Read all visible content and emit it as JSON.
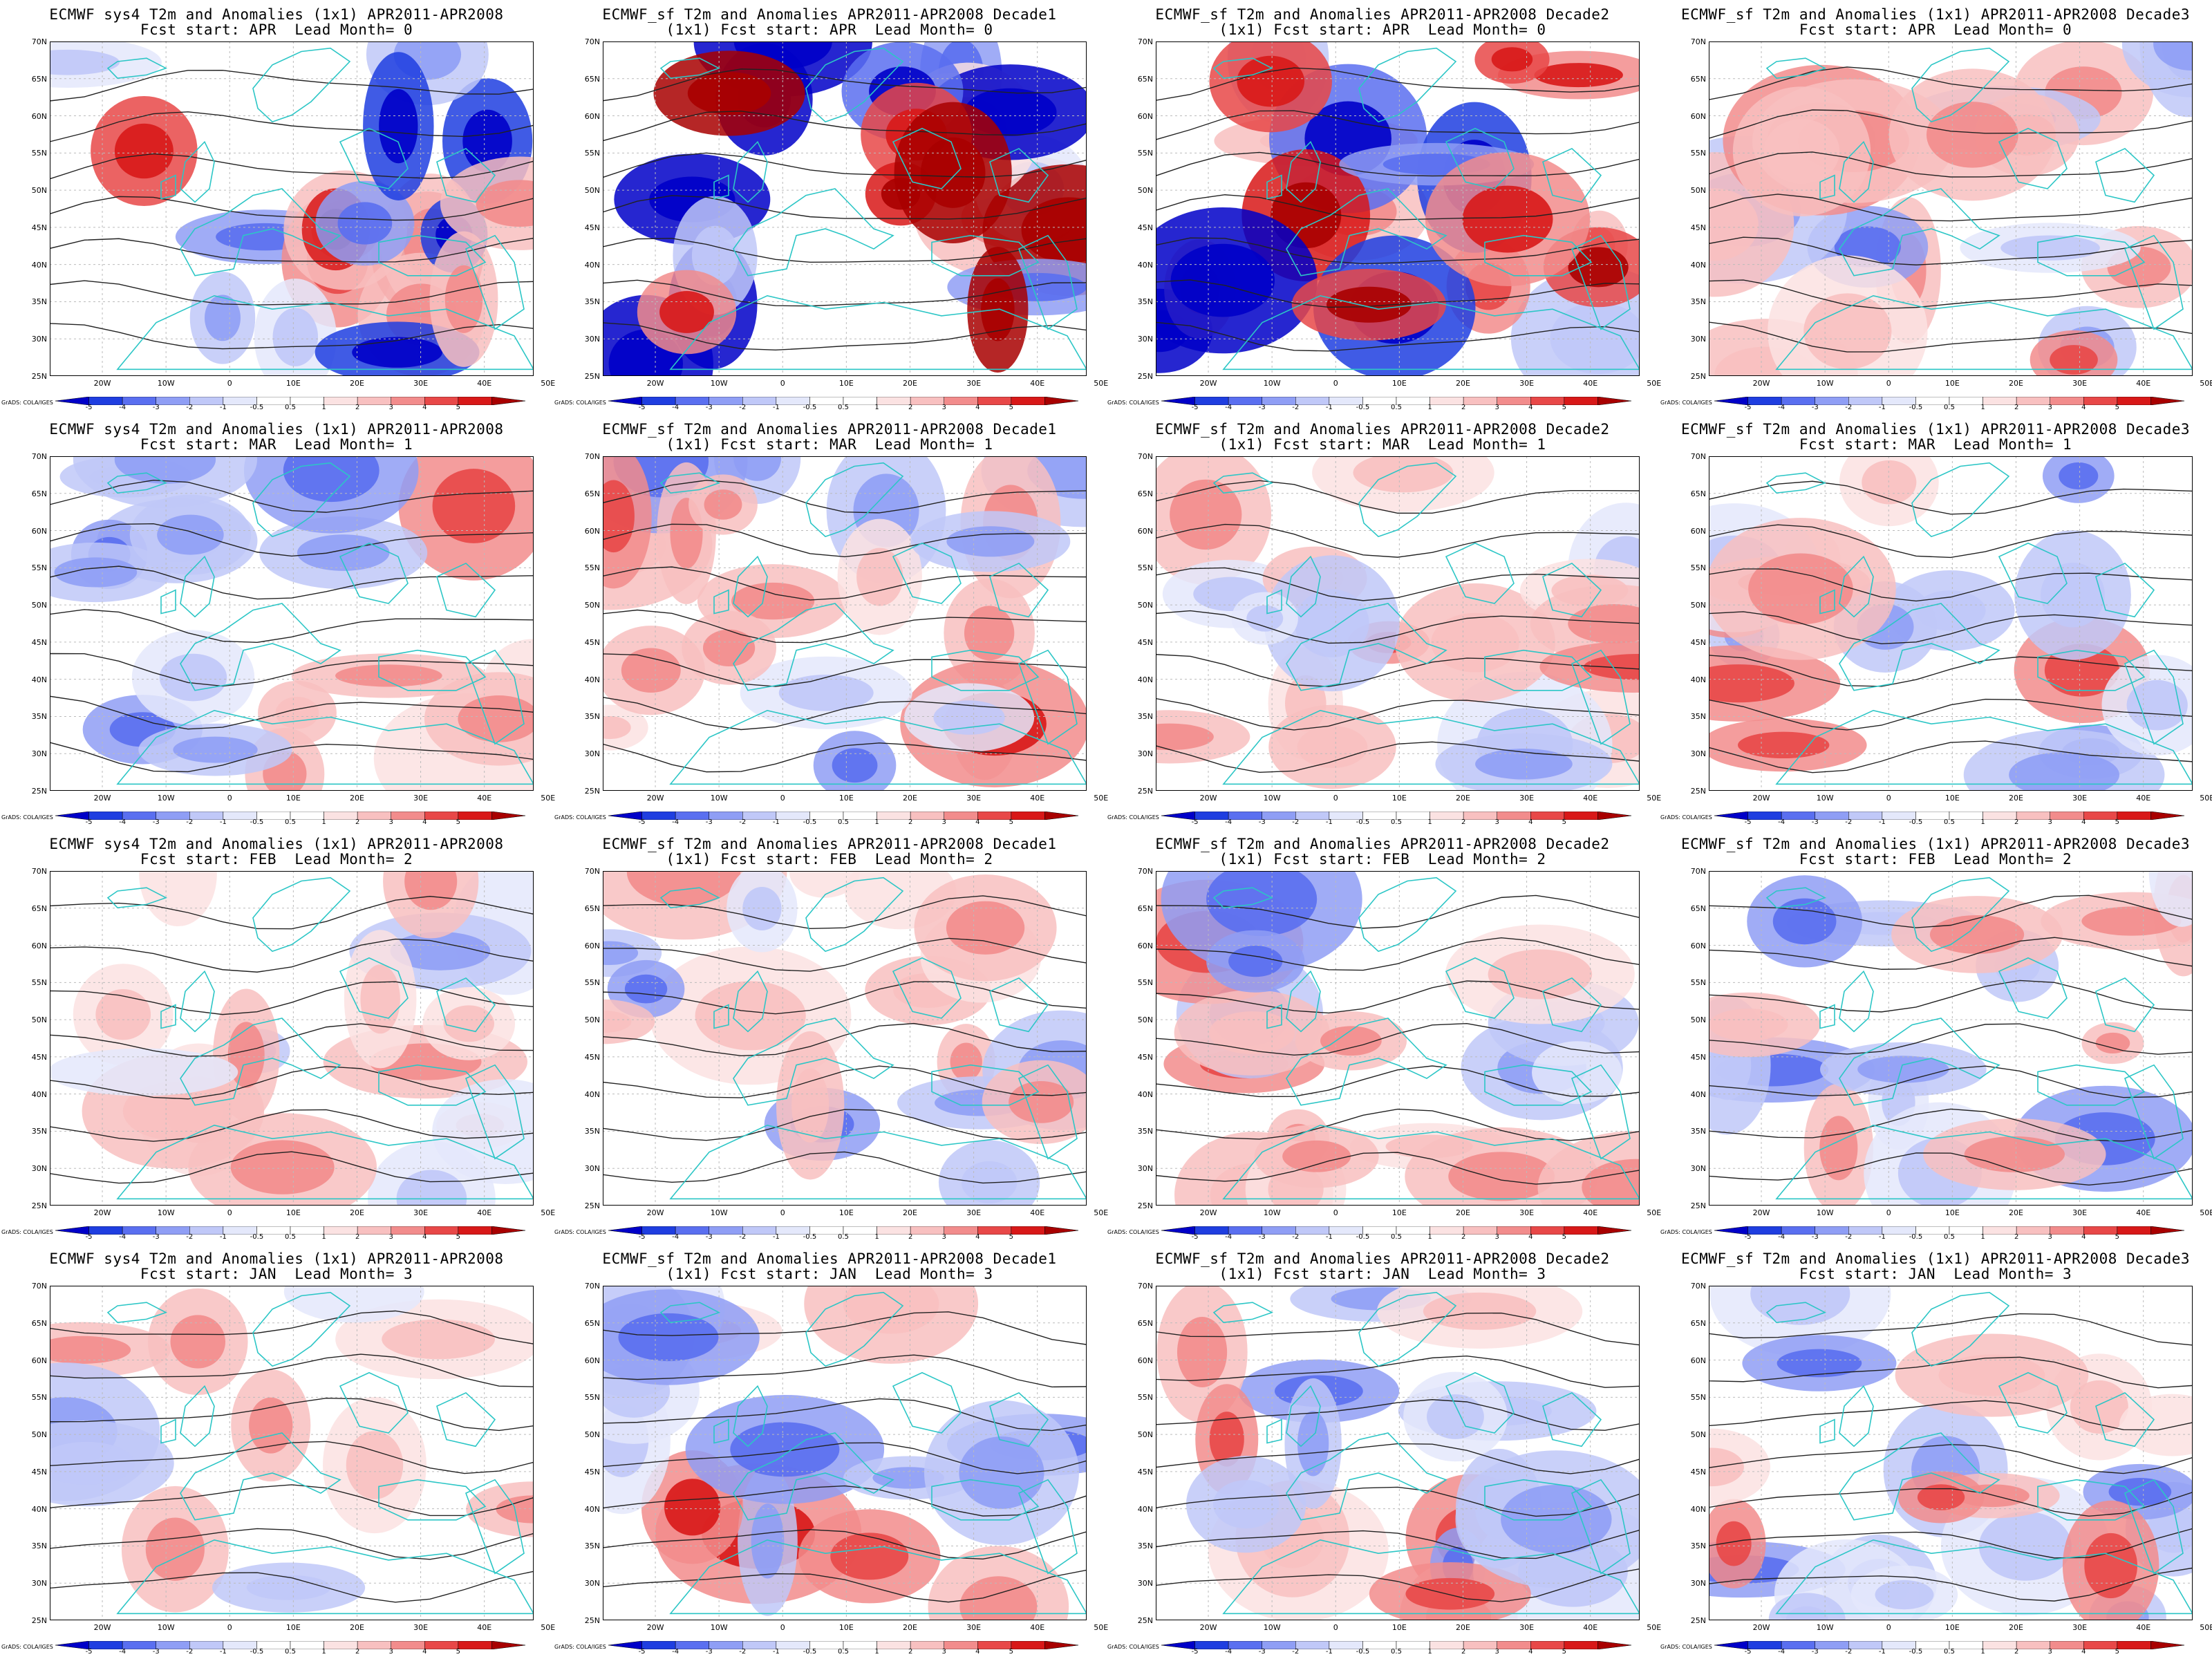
{
  "colors": {
    "scale": [
      "#0000c8",
      "#1f3ee0",
      "#5a6ff0",
      "#8f9ef5",
      "#c0c8f8",
      "#e4e8fb",
      "#ffffff",
      "#ffffff",
      "#fbe2e2",
      "#f8c0c0",
      "#f28c8c",
      "#e84848",
      "#d81818",
      "#a80000"
    ],
    "coast": "#2cc6c6",
    "contour": "#222222",
    "grid": "#bbbbbb"
  },
  "axes": {
    "lat_labels": [
      "70N",
      "65N",
      "60N",
      "55N",
      "50N",
      "45N",
      "40N",
      "35N",
      "30N",
      "25N"
    ],
    "lon_labels": [
      "20W",
      "10W",
      "0",
      "10E",
      "20E",
      "30E",
      "40E",
      "50E"
    ]
  },
  "colorbar": {
    "labels": [
      "-5",
      "-4",
      "-3",
      "-2",
      "-1",
      "-0.5",
      "0.5",
      "1",
      "2",
      "3",
      "4",
      "5"
    ]
  },
  "credit": "GrADS: COLA/IGES",
  "panels": [
    {
      "title1": "ECMWF sys4 T2m and Anomalies (1x1) APR2011-APR2008",
      "title2": "Fcst start: APR  Lead Month= 0",
      "intensity": 1.3,
      "seed": 11
    },
    {
      "title1": "ECMWF_sf T2m and Anomalies APR2011-APR2008 Decade1",
      "title2": "(1x1) Fcst start: APR  Lead Month= 0",
      "intensity": 1.8,
      "seed": 12
    },
    {
      "title1": "ECMWF_sf T2m and Anomalies APR2011-APR2008 Decade2",
      "title2": "(1x1) Fcst start: APR  Lead Month= 0",
      "intensity": 1.5,
      "seed": 13
    },
    {
      "title1": "ECMWF_sf T2m and Anomalies (1x1) APR2011-APR2008 Decade3",
      "title2": "Fcst start: APR  Lead Month= 0",
      "intensity": 0.7,
      "seed": 14
    },
    {
      "title1": "ECMWF sys4 T2m and Anomalies (1x1) APR2011-APR2008",
      "title2": "Fcst start: MAR  Lead Month= 1",
      "intensity": 0.6,
      "seed": 21
    },
    {
      "title1": "ECMWF_sf T2m and Anomalies APR2011-APR2008 Decade1",
      "title2": "(1x1) Fcst start: MAR  Lead Month= 1",
      "intensity": 0.7,
      "seed": 22
    },
    {
      "title1": "ECMWF_sf T2m and Anomalies APR2011-APR2008 Decade2",
      "title2": "(1x1) Fcst start: MAR  Lead Month= 1",
      "intensity": 0.6,
      "seed": 23
    },
    {
      "title1": "ECMWF_sf T2m and Anomalies (1x1) APR2011-APR2008 Decade3",
      "title2": "Fcst start: MAR  Lead Month= 1",
      "intensity": 0.7,
      "seed": 24
    },
    {
      "title1": "ECMWF sys4 T2m and Anomalies (1x1) APR2011-APR2008",
      "title2": "Fcst start: FEB  Lead Month= 2",
      "intensity": 0.5,
      "seed": 31
    },
    {
      "title1": "ECMWF_sf T2m and Anomalies APR2011-APR2008 Decade1",
      "title2": "(1x1) Fcst start: FEB  Lead Month= 2",
      "intensity": 0.6,
      "seed": 32
    },
    {
      "title1": "ECMWF_sf T2m and Anomalies APR2011-APR2008 Decade2",
      "title2": "(1x1) Fcst start: FEB  Lead Month= 2",
      "intensity": 0.6,
      "seed": 33
    },
    {
      "title1": "ECMWF_sf T2m and Anomalies (1x1) APR2011-APR2008 Decade3",
      "title2": "Fcst start: FEB  Lead Month= 2",
      "intensity": 0.6,
      "seed": 34
    },
    {
      "title1": "ECMWF sys4 T2m and Anomalies (1x1) APR2011-APR2008",
      "title2": "Fcst start: JAN  Lead Month= 3",
      "intensity": 0.6,
      "seed": 41
    },
    {
      "title1": "ECMWF_sf T2m and Anomalies APR2011-APR2008 Decade1",
      "title2": "(1x1) Fcst start: JAN  Lead Month= 3",
      "intensity": 0.8,
      "seed": 42
    },
    {
      "title1": "ECMWF_sf T2m and Anomalies APR2011-APR2008 Decade2",
      "title2": "(1x1) Fcst start: JAN  Lead Month= 3",
      "intensity": 0.6,
      "seed": 43
    },
    {
      "title1": "ECMWF_sf T2m and Anomalies (1x1) APR2011-APR2008 Decade3",
      "title2": "Fcst start: JAN  Lead Month= 3",
      "intensity": 0.6,
      "seed": 44
    }
  ]
}
